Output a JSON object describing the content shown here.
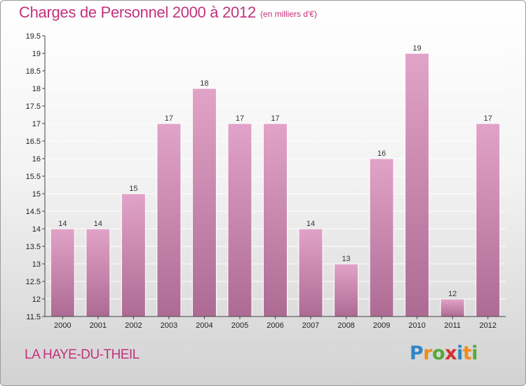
{
  "chart_data": {
    "type": "bar",
    "title": "Charges de Personnel 2000 à 2012",
    "subtitle": "(en milliers d'€)",
    "categories": [
      "2000",
      "2001",
      "2002",
      "2003",
      "2004",
      "2005",
      "2006",
      "2007",
      "2008",
      "2009",
      "2010",
      "2011",
      "2012"
    ],
    "values": [
      14,
      14,
      15,
      17,
      18,
      17,
      17,
      14,
      13,
      16,
      19,
      12,
      17
    ],
    "data_labels": [
      "14",
      "14",
      "15",
      "17",
      "18",
      "17",
      "17",
      "14",
      "13",
      "16",
      "19",
      "12",
      "17"
    ],
    "xlabel": "",
    "ylabel": "",
    "ylim": [
      11.5,
      19.5
    ],
    "yticks": [
      11.5,
      12,
      12.5,
      13,
      13.5,
      14,
      14.5,
      15,
      15.5,
      16,
      16.5,
      17,
      17.5,
      18,
      18.5,
      19,
      19.5
    ],
    "ytick_labels": [
      "11.5",
      "12",
      "12.5",
      "13",
      "13.5",
      "14",
      "14.5",
      "15",
      "15.5",
      "16",
      "16.5",
      "17",
      "17.5",
      "18",
      "18.5",
      "19",
      "19.5"
    ],
    "grid": true,
    "bar_color_top": "#e2a3c8",
    "bar_color_bottom": "#ad6b93",
    "grid_color": "#ffffff"
  },
  "footer": {
    "place": "LA HAYE-DU-THEIL",
    "logo_letters": [
      "P",
      "r",
      "o",
      "x",
      "i",
      "t",
      "i"
    ],
    "logo_colors": [
      "#2e86c8",
      "#f08c1a",
      "#57a83c",
      "#d42e2e",
      "#2e86c8",
      "#f08c1a",
      "#57a83c"
    ]
  },
  "colors": {
    "accent": "#c3327d"
  }
}
